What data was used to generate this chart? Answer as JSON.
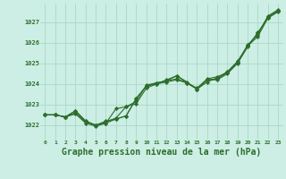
{
  "background_color": "#cceee4",
  "grid_color": "#aad8c8",
  "line_color": "#2d6e2d",
  "marker_color": "#2d6e2d",
  "xlabel": "Graphe pression niveau de la mer (hPa)",
  "xlabel_fontsize": 7,
  "xlabel_color": "#2d6e2d",
  "ylabel_ticks": [
    1022,
    1023,
    1024,
    1025,
    1026,
    1027
  ],
  "ylim": [
    1021.3,
    1027.9
  ],
  "xlim": [
    -0.5,
    23.5
  ],
  "xticks": [
    0,
    1,
    2,
    3,
    4,
    5,
    6,
    7,
    8,
    9,
    10,
    11,
    12,
    13,
    14,
    15,
    16,
    17,
    18,
    19,
    20,
    21,
    22,
    23
  ],
  "series": [
    [
      1022.5,
      1022.5,
      1022.4,
      1022.7,
      1022.2,
      1022.0,
      1022.1,
      1022.3,
      1022.45,
      1023.3,
      1023.9,
      1024.0,
      1024.1,
      1024.2,
      1024.05,
      1023.75,
      1024.2,
      1024.2,
      1024.5,
      1025.0,
      1025.8,
      1026.5,
      1027.2,
      1027.5
    ],
    [
      1022.5,
      1022.5,
      1022.4,
      1022.6,
      1022.15,
      1022.0,
      1022.15,
      1022.35,
      1022.9,
      1023.15,
      1023.95,
      1024.05,
      1024.15,
      1024.4,
      1024.05,
      1023.8,
      1024.25,
      1024.35,
      1024.55,
      1025.05,
      1025.9,
      1026.4,
      1027.3,
      1027.6
    ],
    [
      1022.5,
      1022.5,
      1022.4,
      1022.55,
      1022.1,
      1021.95,
      1022.1,
      1022.8,
      1022.9,
      1023.05,
      1023.8,
      1024.0,
      1024.2,
      1024.4,
      1024.1,
      1023.75,
      1024.1,
      1024.3,
      1024.6,
      1025.1,
      1025.85,
      1026.3,
      1027.2,
      1027.55
    ],
    [
      1022.5,
      1022.5,
      1022.4,
      1022.7,
      1022.2,
      1022.0,
      1022.2,
      1022.3,
      1022.45,
      1023.3,
      1023.9,
      1024.05,
      1024.15,
      1024.25,
      1024.05,
      1023.75,
      1024.2,
      1024.25,
      1024.55,
      1025.05,
      1025.85,
      1026.45,
      1027.25,
      1027.55
    ]
  ]
}
